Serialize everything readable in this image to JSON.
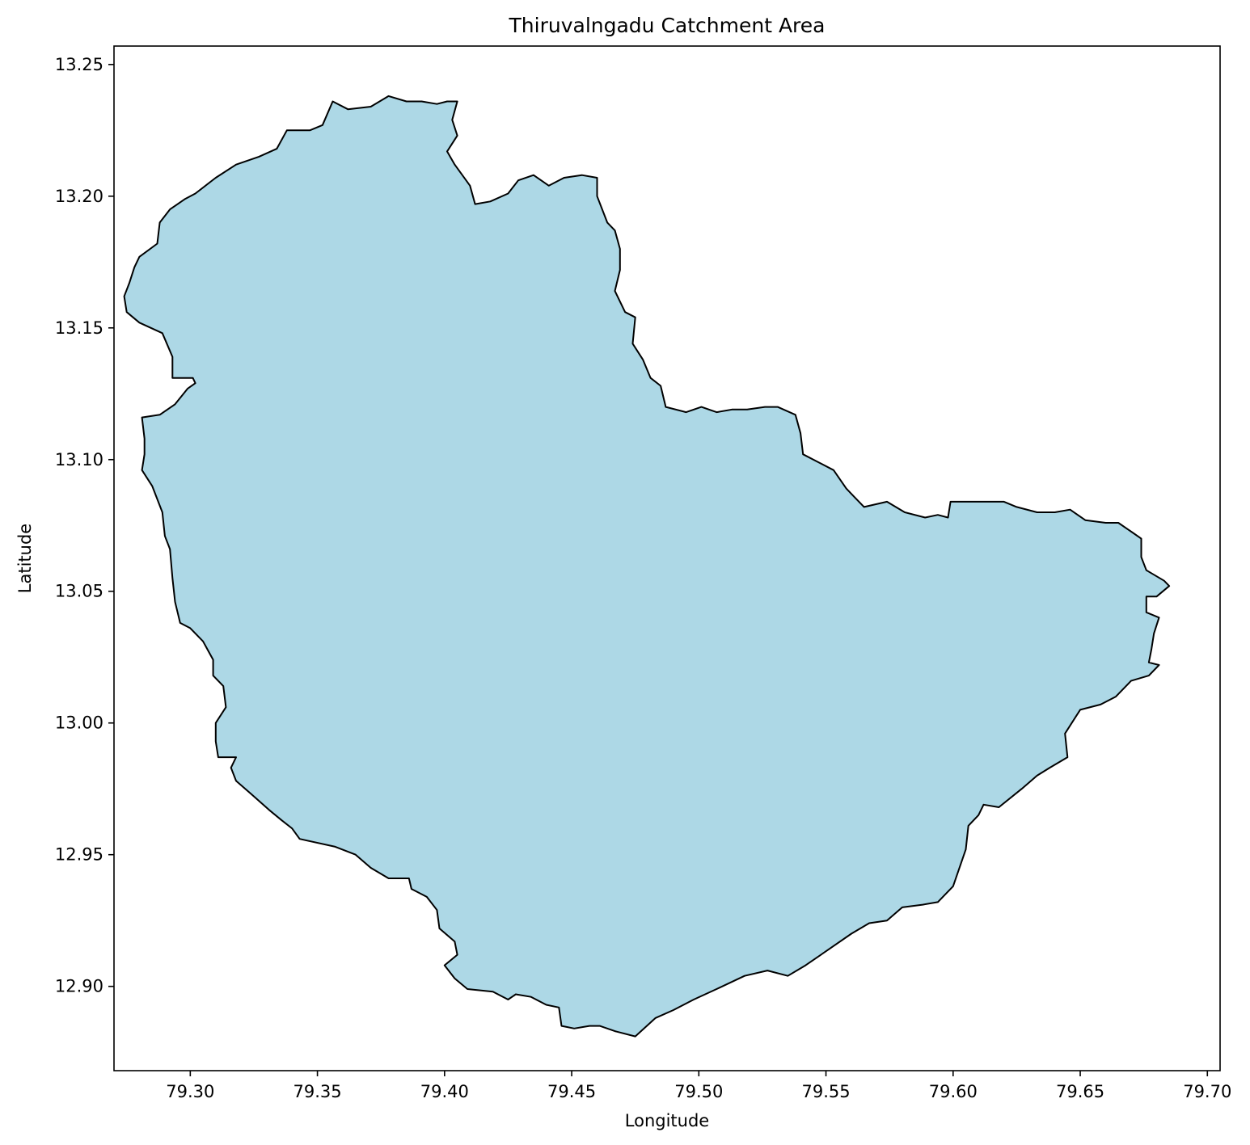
{
  "chart_data": {
    "type": "map",
    "title": "Thiruvalngadu Catchment Area",
    "xlabel": "Longitude",
    "ylabel": "Latitude",
    "xlim": [
      79.27,
      79.705
    ],
    "ylim": [
      12.868,
      13.257
    ],
    "x_ticks": [
      79.3,
      79.35,
      79.4,
      79.45,
      79.5,
      79.55,
      79.6,
      79.65,
      79.7
    ],
    "x_tick_labels": [
      "79.30",
      "79.35",
      "79.40",
      "79.45",
      "79.50",
      "79.55",
      "79.60",
      "79.65",
      "79.70"
    ],
    "y_ticks": [
      12.9,
      12.95,
      13.0,
      13.05,
      13.1,
      13.15,
      13.2,
      13.25
    ],
    "y_tick_labels": [
      "12.90",
      "12.95",
      "13.00",
      "13.05",
      "13.10",
      "13.15",
      "13.20",
      "13.25"
    ],
    "grid": false,
    "fill_color": "#add8e6",
    "edge_color": "#000000",
    "polygon": [
      [
        79.356,
        13.236
      ],
      [
        79.362,
        13.233
      ],
      [
        79.371,
        13.234
      ],
      [
        79.378,
        13.238
      ],
      [
        79.385,
        13.236
      ],
      [
        79.391,
        13.236
      ],
      [
        79.397,
        13.235
      ],
      [
        79.401,
        13.236
      ],
      [
        79.405,
        13.236
      ],
      [
        79.403,
        13.229
      ],
      [
        79.405,
        13.223
      ],
      [
        79.401,
        13.217
      ],
      [
        79.404,
        13.212
      ],
      [
        79.41,
        13.204
      ],
      [
        79.412,
        13.197
      ],
      [
        79.418,
        13.198
      ],
      [
        79.425,
        13.201
      ],
      [
        79.429,
        13.206
      ],
      [
        79.435,
        13.208
      ],
      [
        79.441,
        13.204
      ],
      [
        79.447,
        13.207
      ],
      [
        79.454,
        13.208
      ],
      [
        79.46,
        13.207
      ],
      [
        79.46,
        13.2
      ],
      [
        79.464,
        13.19
      ],
      [
        79.467,
        13.187
      ],
      [
        79.469,
        13.18
      ],
      [
        79.469,
        13.172
      ],
      [
        79.467,
        13.164
      ],
      [
        79.471,
        13.156
      ],
      [
        79.475,
        13.154
      ],
      [
        79.474,
        13.144
      ],
      [
        79.478,
        13.138
      ],
      [
        79.481,
        13.131
      ],
      [
        79.485,
        13.128
      ],
      [
        79.487,
        13.12
      ],
      [
        79.495,
        13.118
      ],
      [
        79.501,
        13.12
      ],
      [
        79.507,
        13.118
      ],
      [
        79.513,
        13.119
      ],
      [
        79.519,
        13.119
      ],
      [
        79.526,
        13.12
      ],
      [
        79.531,
        13.12
      ],
      [
        79.538,
        13.117
      ],
      [
        79.54,
        13.11
      ],
      [
        79.541,
        13.102
      ],
      [
        79.547,
        13.099
      ],
      [
        79.553,
        13.096
      ],
      [
        79.558,
        13.089
      ],
      [
        79.561,
        13.086
      ],
      [
        79.565,
        13.082
      ],
      [
        79.574,
        13.084
      ],
      [
        79.581,
        13.08
      ],
      [
        79.589,
        13.078
      ],
      [
        79.594,
        13.079
      ],
      [
        79.598,
        13.078
      ],
      [
        79.599,
        13.084
      ],
      [
        79.604,
        13.084
      ],
      [
        79.612,
        13.084
      ],
      [
        79.62,
        13.084
      ],
      [
        79.625,
        13.082
      ],
      [
        79.633,
        13.08
      ],
      [
        79.64,
        13.08
      ],
      [
        79.646,
        13.081
      ],
      [
        79.652,
        13.077
      ],
      [
        79.66,
        13.076
      ],
      [
        79.665,
        13.076
      ],
      [
        79.671,
        13.072
      ],
      [
        79.674,
        13.07
      ],
      [
        79.674,
        13.063
      ],
      [
        79.676,
        13.058
      ],
      [
        79.683,
        13.054
      ],
      [
        79.685,
        13.052
      ],
      [
        79.68,
        13.048
      ],
      [
        79.676,
        13.048
      ],
      [
        79.676,
        13.042
      ],
      [
        79.681,
        13.04
      ],
      [
        79.679,
        13.034
      ],
      [
        79.678,
        13.028
      ],
      [
        79.677,
        13.023
      ],
      [
        79.681,
        13.022
      ],
      [
        79.677,
        13.018
      ],
      [
        79.67,
        13.016
      ],
      [
        79.664,
        13.01
      ],
      [
        79.658,
        13.007
      ],
      [
        79.65,
        13.005
      ],
      [
        79.644,
        12.996
      ],
      [
        79.645,
        12.987
      ],
      [
        79.638,
        12.983
      ],
      [
        79.633,
        12.98
      ],
      [
        79.627,
        12.975
      ],
      [
        79.618,
        12.968
      ],
      [
        79.612,
        12.969
      ],
      [
        79.61,
        12.965
      ],
      [
        79.606,
        12.961
      ],
      [
        79.605,
        12.952
      ],
      [
        79.6,
        12.938
      ],
      [
        79.594,
        12.932
      ],
      [
        79.588,
        12.931
      ],
      [
        79.58,
        12.93
      ],
      [
        79.574,
        12.925
      ],
      [
        79.567,
        12.924
      ],
      [
        79.56,
        12.92
      ],
      [
        79.551,
        12.914
      ],
      [
        79.542,
        12.908
      ],
      [
        79.535,
        12.904
      ],
      [
        79.527,
        12.906
      ],
      [
        79.518,
        12.904
      ],
      [
        79.507,
        12.899
      ],
      [
        79.498,
        12.895
      ],
      [
        79.49,
        12.891
      ],
      [
        79.483,
        12.888
      ],
      [
        79.475,
        12.881
      ],
      [
        79.467,
        12.883
      ],
      [
        79.461,
        12.885
      ],
      [
        79.457,
        12.885
      ],
      [
        79.451,
        12.884
      ],
      [
        79.446,
        12.885
      ],
      [
        79.445,
        12.892
      ],
      [
        79.44,
        12.893
      ],
      [
        79.434,
        12.896
      ],
      [
        79.428,
        12.897
      ],
      [
        79.425,
        12.895
      ],
      [
        79.419,
        12.898
      ],
      [
        79.409,
        12.899
      ],
      [
        79.404,
        12.903
      ],
      [
        79.4,
        12.908
      ],
      [
        79.405,
        12.912
      ],
      [
        79.404,
        12.917
      ],
      [
        79.398,
        12.922
      ],
      [
        79.397,
        12.929
      ],
      [
        79.393,
        12.934
      ],
      [
        79.387,
        12.937
      ],
      [
        79.386,
        12.941
      ],
      [
        79.378,
        12.941
      ],
      [
        79.371,
        12.945
      ],
      [
        79.365,
        12.95
      ],
      [
        79.357,
        12.953
      ],
      [
        79.343,
        12.956
      ],
      [
        79.34,
        12.96
      ],
      [
        79.336,
        12.963
      ],
      [
        79.331,
        12.967
      ],
      [
        79.324,
        12.973
      ],
      [
        79.318,
        12.978
      ],
      [
        79.316,
        12.983
      ],
      [
        79.318,
        12.987
      ],
      [
        79.311,
        12.987
      ],
      [
        79.31,
        12.993
      ],
      [
        79.31,
        13.0
      ],
      [
        79.314,
        13.006
      ],
      [
        79.313,
        13.014
      ],
      [
        79.309,
        13.018
      ],
      [
        79.309,
        13.024
      ],
      [
        79.305,
        13.031
      ],
      [
        79.3,
        13.036
      ],
      [
        79.296,
        13.038
      ],
      [
        79.294,
        13.046
      ],
      [
        79.293,
        13.055
      ],
      [
        79.292,
        13.066
      ],
      [
        79.29,
        13.071
      ],
      [
        79.289,
        13.08
      ],
      [
        79.285,
        13.09
      ],
      [
        79.281,
        13.096
      ],
      [
        79.282,
        13.102
      ],
      [
        79.282,
        13.108
      ],
      [
        79.281,
        13.116
      ],
      [
        79.288,
        13.117
      ],
      [
        79.294,
        13.121
      ],
      [
        79.299,
        13.127
      ],
      [
        79.302,
        13.129
      ],
      [
        79.301,
        13.131
      ],
      [
        79.293,
        13.131
      ],
      [
        79.293,
        13.139
      ],
      [
        79.289,
        13.148
      ],
      [
        79.28,
        13.152
      ],
      [
        79.275,
        13.156
      ],
      [
        79.274,
        13.162
      ],
      [
        79.276,
        13.167
      ],
      [
        79.278,
        13.173
      ],
      [
        79.28,
        13.177
      ],
      [
        79.287,
        13.182
      ],
      [
        79.288,
        13.19
      ],
      [
        79.292,
        13.195
      ],
      [
        79.298,
        13.199
      ],
      [
        79.302,
        13.201
      ],
      [
        79.31,
        13.207
      ],
      [
        79.318,
        13.212
      ],
      [
        79.327,
        13.215
      ],
      [
        79.334,
        13.218
      ],
      [
        79.338,
        13.225
      ],
      [
        79.347,
        13.225
      ],
      [
        79.352,
        13.227
      ],
      [
        79.356,
        13.236
      ]
    ]
  }
}
